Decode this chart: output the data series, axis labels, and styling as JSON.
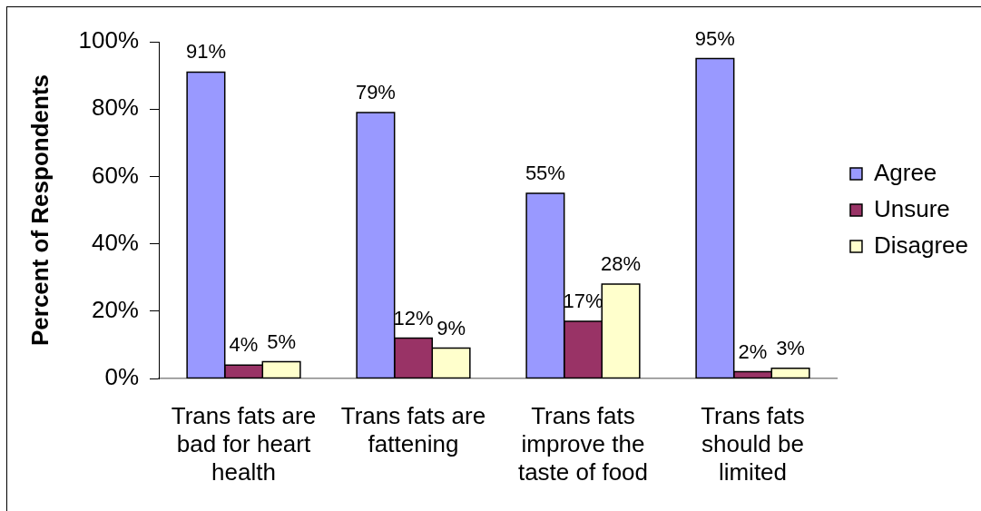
{
  "chart_data": {
    "type": "bar",
    "ylabel": "Percent of Respondents",
    "categories": [
      "Trans fats are bad for heart health",
      "Trans fats are fattening",
      "Trans fats improve the taste of food",
      "Trans fats should be limited"
    ],
    "series": [
      {
        "name": "Agree",
        "color": "#9999ff",
        "values": [
          91,
          79,
          55,
          95
        ],
        "value_labels": [
          "91%",
          "79%",
          "55%",
          "95%"
        ]
      },
      {
        "name": "Unsure",
        "color": "#993366",
        "values": [
          4,
          12,
          17,
          2
        ],
        "value_labels": [
          "4%",
          "12%",
          "17%",
          "2%"
        ]
      },
      {
        "name": "Disagree",
        "color": "#ffffcc",
        "values": [
          5,
          9,
          28,
          3
        ],
        "value_labels": [
          "5%",
          "9%",
          "28%",
          "3%"
        ]
      }
    ],
    "ylim": [
      0,
      100
    ],
    "yticks": [
      {
        "value": 0,
        "label": "0%"
      },
      {
        "value": 20,
        "label": "20%"
      },
      {
        "value": 40,
        "label": "40%"
      },
      {
        "value": 60,
        "label": "60%"
      },
      {
        "value": 80,
        "label": "80%"
      },
      {
        "value": 100,
        "label": "100%"
      }
    ],
    "legend": "right"
  }
}
